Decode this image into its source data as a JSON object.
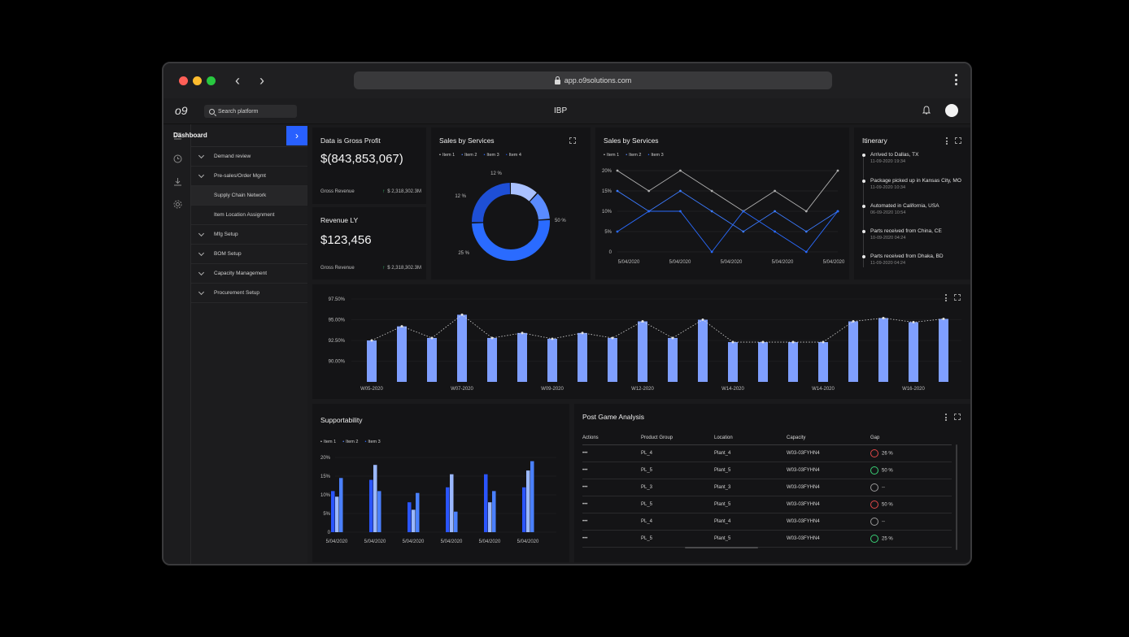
{
  "browser": {
    "url": "app.o9solutions.com"
  },
  "app": {
    "logo": "o9",
    "search_placeholder": "Search platform",
    "title": "IBP"
  },
  "sidebar": {
    "title": "Dashboard",
    "items": [
      {
        "label": "Demand review"
      },
      {
        "label": "Pre-sales/Order Mgmt"
      },
      {
        "label": "Supply Chain Network"
      },
      {
        "label": "Item Location Assignment"
      },
      {
        "label": "Mfg Setup"
      },
      {
        "label": "BOM Setup"
      },
      {
        "label": "Capacity Management"
      },
      {
        "label": "Procurement Setup"
      }
    ]
  },
  "kpi1": {
    "title": "Data is Gross Profit",
    "value": "$(843,853,067)",
    "sub_label": "Gross Revenue",
    "sub_value": "$ 2,318,302.3M"
  },
  "kpi2": {
    "title": "Revenue LY",
    "value": "$123,456",
    "sub_label": "Gross Revenue",
    "sub_value": "$ 2,318,302.3M"
  },
  "donut": {
    "title": "Sales by Services",
    "legend": [
      "Item 1",
      "Item 2",
      "Item 3",
      "Item 4"
    ],
    "labels": [
      "12 %",
      "12 %",
      "50 %",
      "25 %"
    ],
    "chart_data": {
      "type": "pie",
      "categories": [
        "Item 1",
        "Item 2",
        "Item 3",
        "Item 4"
      ],
      "values": [
        12,
        12,
        50,
        25
      ]
    }
  },
  "line": {
    "title": "Sales by Services",
    "legend": [
      "Item 1",
      "Item 2",
      "Item 3"
    ],
    "yticks": [
      "20%",
      "15%",
      "10%",
      "5%",
      "0"
    ],
    "xticks": [
      "5/04/2020",
      "5/04/2020",
      "5/04/2020",
      "5/04/2020",
      "5/04/2020"
    ],
    "chart_data": {
      "type": "line",
      "ylim": [
        0,
        20
      ],
      "series": [
        {
          "name": "Item 1",
          "values": [
            20,
            15,
            20,
            15,
            10,
            15,
            10,
            20
          ]
        },
        {
          "name": "Item 2",
          "values": [
            15,
            10,
            15,
            10,
            5,
            10,
            5,
            10
          ]
        },
        {
          "name": "Item 3",
          "values": [
            5,
            10,
            10,
            0,
            10,
            5,
            0,
            10
          ]
        }
      ]
    }
  },
  "itinerary": {
    "title": "Itinerary",
    "items": [
      {
        "text": "Arrived to Dallas, TX",
        "date": "11-09-2020 19:34"
      },
      {
        "text": "Package picked up in Kansas City, MO",
        "date": "11-09-2020 10:34"
      },
      {
        "text": "Automated in California, USA",
        "date": "06-09-2020 10:54"
      },
      {
        "text": "Parts received from China, CE",
        "date": "10-09-2020 04:24"
      },
      {
        "text": "Parts received from Dhaka, BD",
        "date": "11-09-2020 04:24"
      }
    ]
  },
  "weekly": {
    "yticks": [
      "97.50%",
      "95.00%",
      "92.50%",
      "90.00%"
    ],
    "xticks": [
      "W05-2020",
      "W07-2020",
      "W09-2020",
      "W12-2020",
      "W14-2020",
      "W14-2020",
      "W16-2020"
    ],
    "chart_data": {
      "type": "bar",
      "ylim": [
        87.5,
        97.5
      ],
      "values": [
        92.5,
        94.2,
        92.8,
        95.6,
        92.8,
        93.4,
        92.7,
        93.4,
        92.8,
        94.8,
        92.8,
        95.0,
        92.3,
        92.3,
        92.3,
        92.3,
        94.8,
        95.2,
        94.7,
        95.1
      ]
    }
  },
  "support": {
    "title": "Supportability",
    "legend": [
      "Item 1",
      "Item 2",
      "Item 3"
    ],
    "yticks": [
      "20%",
      "15%",
      "10%",
      "5%",
      "0"
    ],
    "xticks": [
      "5/04/2020",
      "5/04/2020",
      "5/04/2020",
      "5/04/2020",
      "5/04/2020",
      "5/04/2020"
    ],
    "chart_data": {
      "type": "bar",
      "ylim": [
        0,
        20
      ],
      "series": [
        {
          "name": "Item 1",
          "values": [
            11,
            14,
            8,
            12,
            15.5,
            12
          ]
        },
        {
          "name": "Item 2",
          "values": [
            9.5,
            18,
            6,
            15.5,
            8,
            16.5
          ]
        },
        {
          "name": "Item 3",
          "values": [
            14.5,
            11,
            10.5,
            5.5,
            11,
            19
          ]
        }
      ]
    }
  },
  "pga": {
    "title": "Post Game Analysis",
    "headers": [
      "Actions",
      "Product Group",
      "Location",
      "Capacity",
      "Gap"
    ],
    "rows": [
      {
        "action": "•••",
        "group": "PL_4",
        "location": "Plant_4",
        "capacity": "W03-03FYHN4",
        "gap": "26 %",
        "status": "red"
      },
      {
        "action": "•••",
        "group": "PL_5",
        "location": "Plant_5",
        "capacity": "W03-03FYHN4",
        "gap": "50 %",
        "status": "green"
      },
      {
        "action": "•••",
        "group": "PL_3",
        "location": "Plant_3",
        "capacity": "W03-03FYHN4",
        "gap": "--",
        "status": "gray"
      },
      {
        "action": "•••",
        "group": "PL_5",
        "location": "Plant_5",
        "capacity": "W03-03FYHN4",
        "gap": "50 %",
        "status": "red"
      },
      {
        "action": "•••",
        "group": "PL_4",
        "location": "Plant_4",
        "capacity": "W03-03FYHN4",
        "gap": "--",
        "status": "gray"
      },
      {
        "action": "•••",
        "group": "PL_5",
        "location": "Plant_5",
        "capacity": "W03-03FYHN4",
        "gap": "25 %",
        "status": "green"
      }
    ]
  },
  "colors": {
    "accent": "#2860ff",
    "bar": "#7f9fff",
    "positive": "#3ad176",
    "negative": "#e04848"
  }
}
